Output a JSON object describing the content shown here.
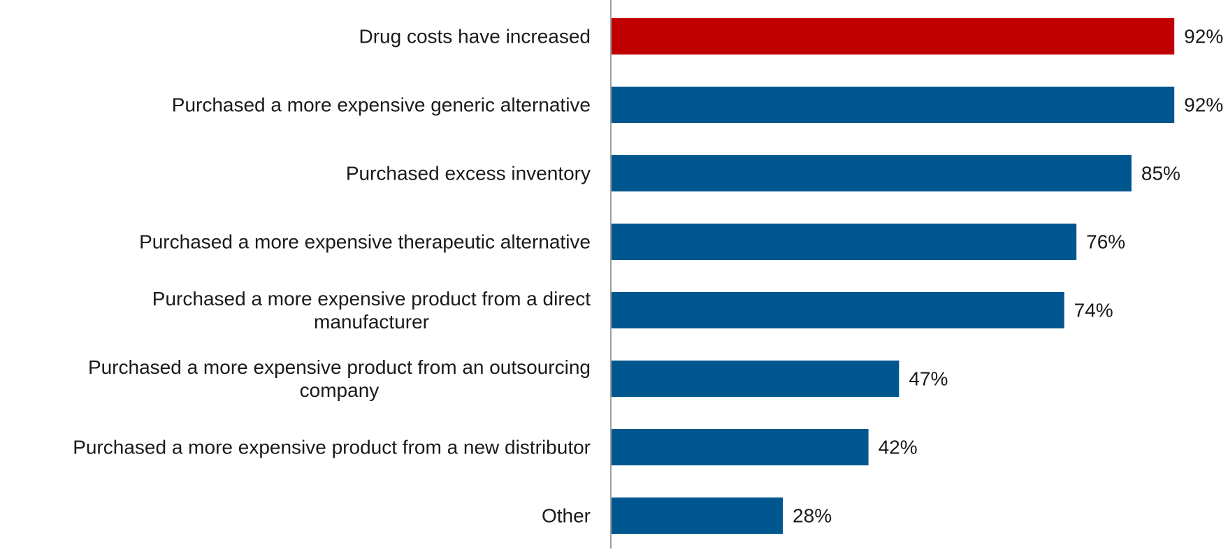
{
  "chart_data": {
    "type": "bar",
    "orientation": "horizontal",
    "categories": [
      [
        "Drug costs have increased"
      ],
      [
        "Purchased a more expensive generic alternative"
      ],
      [
        "Purchased excess inventory"
      ],
      [
        "Purchased a more expensive therapeutic alternative"
      ],
      [
        "Purchased a more expensive product from a direct",
        "manufacturer"
      ],
      [
        "Purchased a more expensive product from an outsourcing",
        "company"
      ],
      [
        "Purchased a more expensive product from a new distributor"
      ],
      [
        "Other"
      ]
    ],
    "values": [
      92,
      92,
      85,
      76,
      74,
      47,
      42,
      28
    ],
    "value_labels": [
      "92%",
      "92%",
      "85%",
      "76%",
      "74%",
      "47%",
      "42%",
      "28%"
    ],
    "unit": "%",
    "highlight_index": 0,
    "xlim": [
      0,
      100
    ],
    "grid": false,
    "legend": "none",
    "title": "",
    "xlabel": "",
    "ylabel": ""
  },
  "colors": {
    "bar": "#00568f",
    "highlight": "#c00000",
    "axis": "#808080",
    "text": "#1a1a1a",
    "background": "#ffffff"
  }
}
